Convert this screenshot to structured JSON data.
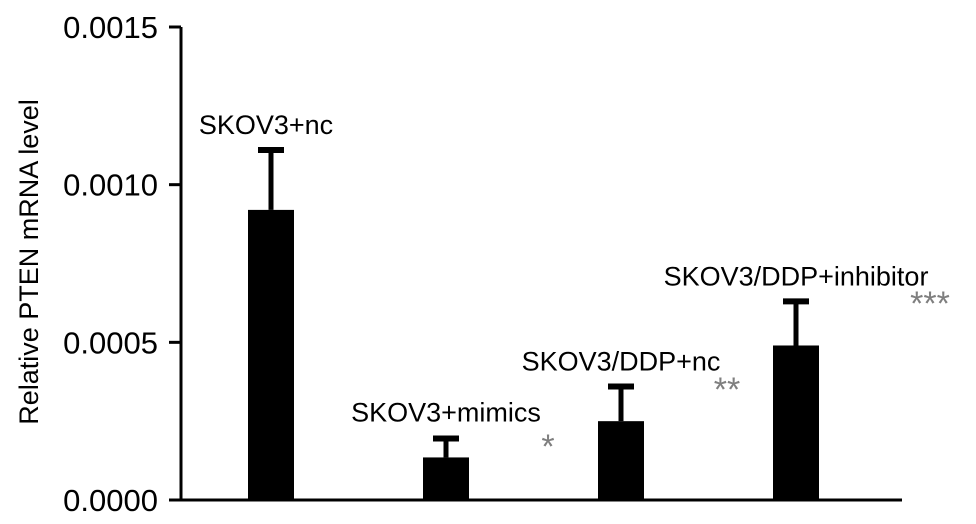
{
  "chart_data": {
    "type": "bar",
    "title": "",
    "xlabel": "",
    "ylabel": "Relative PTEN mRNA level",
    "ylim": [
      0,
      0.0015
    ],
    "yticks": [
      "0.0000",
      "0.0005",
      "0.0010",
      "0.0015"
    ],
    "grid": false,
    "categories": [
      "SKOV3+nc",
      "SKOV3+mimics",
      "SKOV3/DDP+nc",
      "SKOV3/DDP+inhibitor"
    ],
    "values": [
      0.00092,
      0.000135,
      0.00025,
      0.00049
    ],
    "errors": [
      0.00019,
      6e-05,
      0.00011,
      0.00014
    ],
    "significance": [
      "",
      "*",
      "**",
      "***"
    ],
    "colors": {
      "bar": "#000000",
      "significance": "#7f7f7f"
    }
  }
}
